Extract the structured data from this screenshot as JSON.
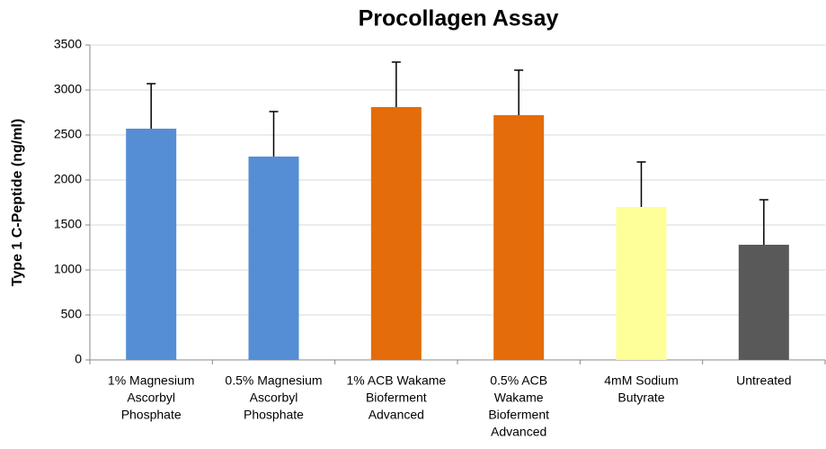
{
  "chart_data": {
    "type": "bar",
    "title": "Procollagen Assay",
    "y_label": "Type 1 C-Peptide (ng/ml)",
    "categories": [
      [
        "1% Magnesium",
        "Ascorbyl",
        "Phosphate"
      ],
      [
        "0.5% Magnesium",
        "Ascorbyl",
        "Phosphate"
      ],
      [
        "1% ACB Wakame",
        "Bioferment",
        "Advanced"
      ],
      [
        "0.5% ACB",
        "Wakame",
        "Bioferment",
        "Advanced"
      ],
      [
        "4mM Sodium",
        "Butyrate"
      ],
      [
        "Untreated"
      ]
    ],
    "values": [
      2570,
      2260,
      2810,
      2720,
      1700,
      1280
    ],
    "errors": [
      500,
      500,
      500,
      500,
      500,
      500
    ],
    "colors": [
      "#558ed5",
      "#558ed5",
      "#e46c0a",
      "#e46c0a",
      "#ffff99",
      "#595959"
    ],
    "ylim": [
      0,
      3500
    ],
    "yticks": [
      0,
      500,
      1000,
      1500,
      2000,
      2500,
      3000,
      3500
    ],
    "grid": true
  }
}
